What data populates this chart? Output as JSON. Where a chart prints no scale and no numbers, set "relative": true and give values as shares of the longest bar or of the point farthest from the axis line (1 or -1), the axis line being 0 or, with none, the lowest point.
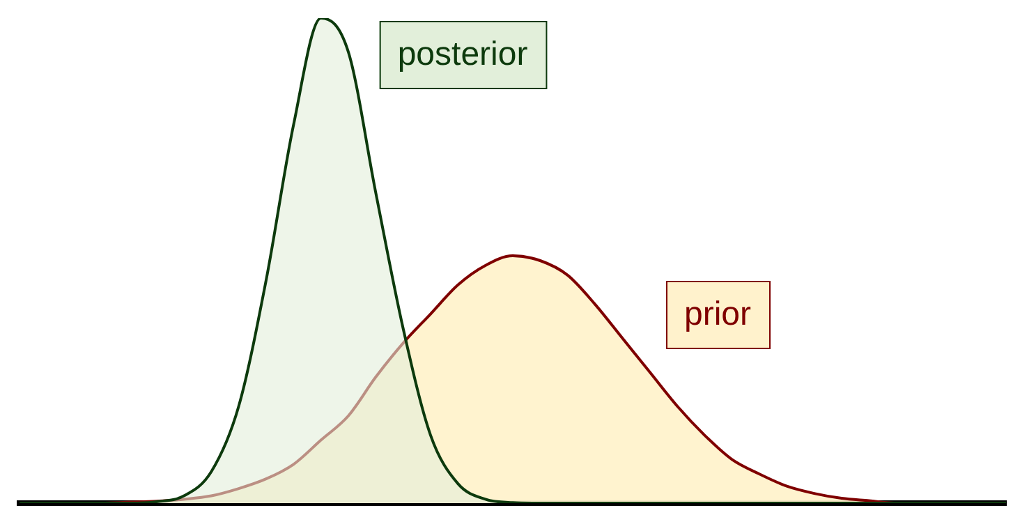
{
  "chart_data": {
    "type": "area",
    "relative": true,
    "legend": false,
    "grid": false,
    "marker": "none",
    "categories": [
      null,
      null,
      null,
      null,
      null,
      null,
      null,
      null,
      null,
      null,
      null,
      null,
      null,
      null,
      null,
      null,
      null,
      null,
      null,
      null,
      null,
      null,
      null,
      null,
      null,
      null,
      null,
      null,
      null,
      null,
      null,
      null,
      null,
      null,
      null,
      null,
      null
    ],
    "series": [
      {
        "name": "prior",
        "color": "#7f0000",
        "values": [
          0,
          0,
          0,
          0,
          0.002,
          0.004,
          0.008,
          0.015,
          0.03,
          0.05,
          0.08,
          0.13,
          0.18,
          0.26,
          0.33,
          0.39,
          0.45,
          0.49,
          0.51,
          0.5,
          0.47,
          0.41,
          0.34,
          0.27,
          0.2,
          0.14,
          0.09,
          0.06,
          0.035,
          0.02,
          0.01,
          0.005,
          0,
          0,
          0,
          0,
          0
        ]
      },
      {
        "name": "posterior",
        "color": "#0d3a0d",
        "values": [
          0,
          0,
          0,
          0,
          0,
          0.003,
          0.015,
          0.065,
          0.2,
          0.46,
          0.78,
          1,
          0.93,
          0.64,
          0.36,
          0.14,
          0.04,
          0.008,
          0.001,
          0,
          0,
          0,
          0,
          0,
          0,
          0,
          0,
          0,
          0,
          0,
          0,
          0,
          0,
          0,
          0,
          0,
          0
        ]
      }
    ]
  }
}
